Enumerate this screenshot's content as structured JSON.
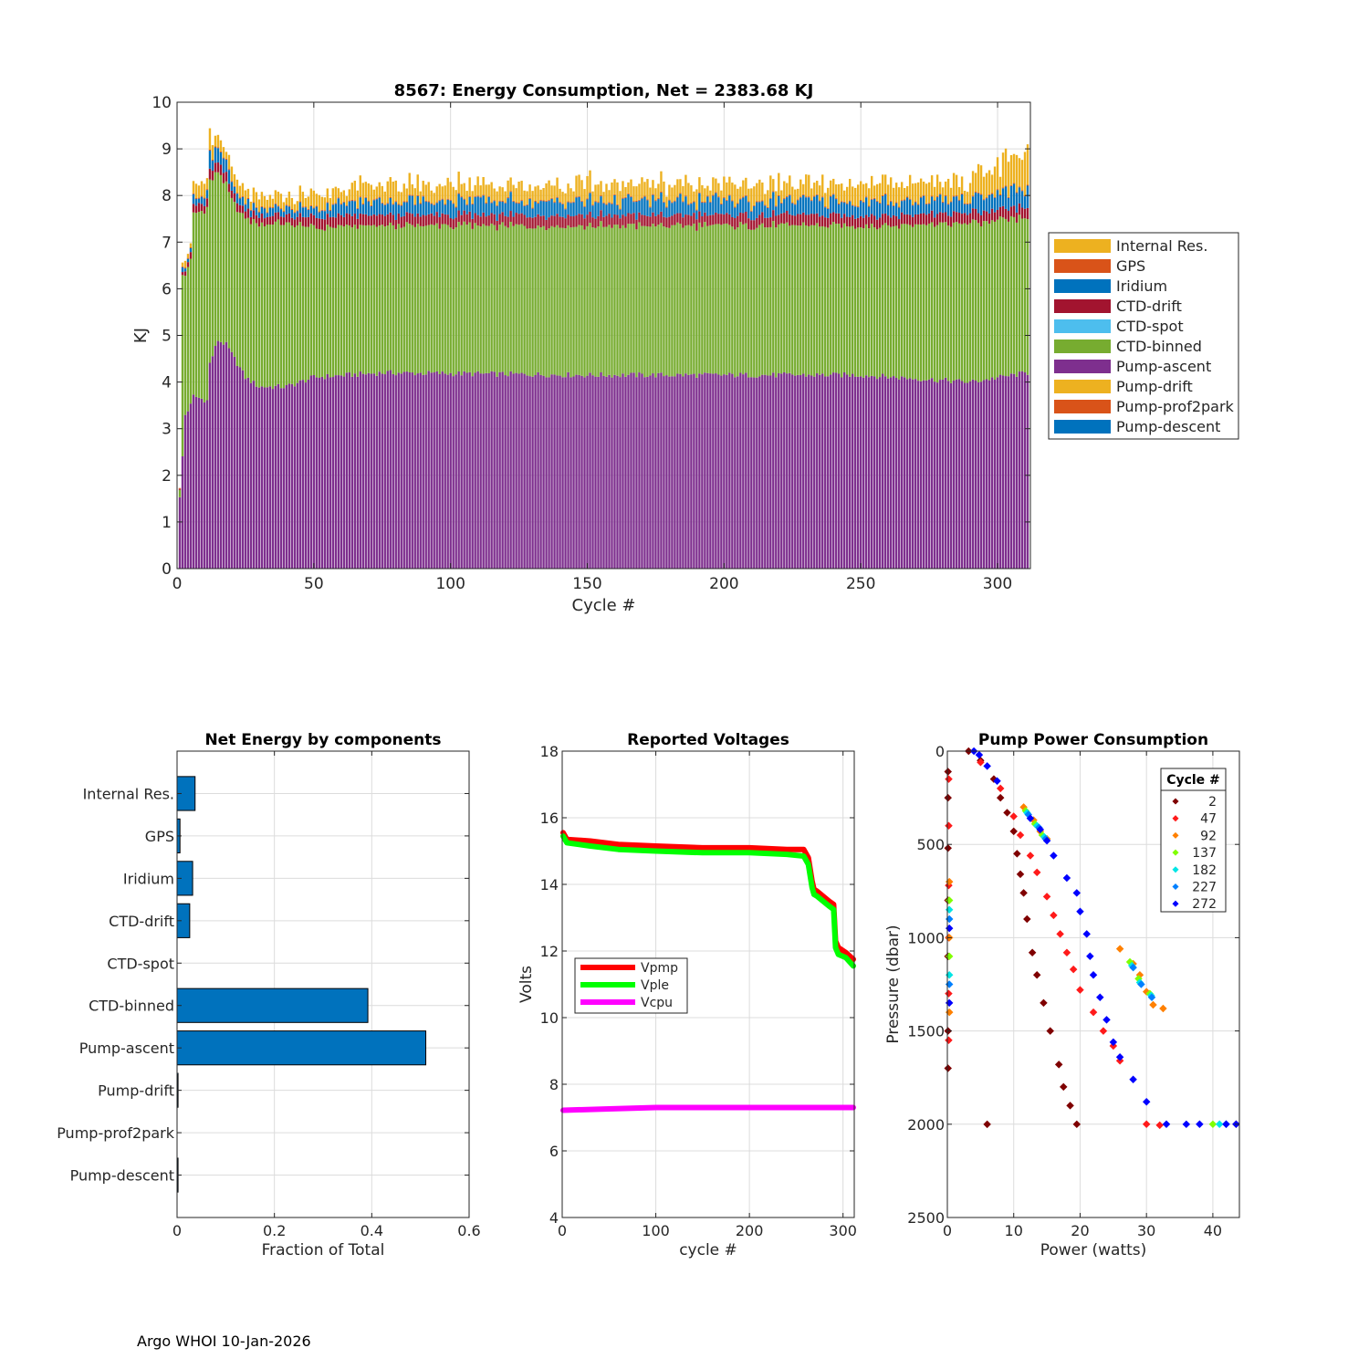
{
  "footer": "Argo WHOI 10-Jan-2026",
  "chart_data": [
    {
      "id": "energy",
      "type": "bar",
      "stacked": true,
      "title": "8567: Energy Consumption,  Net = 2383.68 KJ",
      "xlabel": "Cycle #",
      "ylabel": "KJ",
      "xlim": [
        0,
        312
      ],
      "ylim": [
        0,
        10
      ],
      "xticks": [
        0,
        50,
        100,
        150,
        200,
        250,
        300
      ],
      "yticks": [
        0,
        1,
        2,
        3,
        4,
        5,
        6,
        7,
        8,
        9,
        10
      ],
      "grid": true,
      "legend_position": "east-outside",
      "legend": [
        "Internal Res.",
        "GPS",
        "Iridium",
        "CTD-drift",
        "CTD-spot",
        "CTD-binned",
        "Pump-ascent",
        "Pump-drift",
        "Pump-prof2park",
        "Pump-descent"
      ],
      "colors": {
        "Internal Res.": "#EDB120",
        "GPS": "#D95319",
        "Iridium": "#0072BD",
        "CTD-drift": "#A2142F",
        "CTD-spot": "#4DBEEE",
        "CTD-binned": "#77AC30",
        "Pump-ascent": "#7E2F8E",
        "Pump-drift": "#EDB120",
        "Pump-prof2park": "#D95319",
        "Pump-descent": "#0072BD"
      },
      "n_cycles": 311,
      "profile_keypoints": [
        {
          "cycle": 1,
          "pump_ascent": 1.5,
          "ctd_binned": 0.2,
          "ctd_drift": 0.0,
          "iridium": 0.0,
          "internal": 0.0
        },
        {
          "cycle": 2,
          "pump_ascent": 2.4,
          "ctd_binned": 3.9,
          "ctd_drift": 0.05,
          "iridium": 0.1,
          "internal": 0.1
        },
        {
          "cycle": 3,
          "pump_ascent": 3.3,
          "ctd_binned": 3.0,
          "ctd_drift": 0.05,
          "iridium": 0.1,
          "internal": 0.1
        },
        {
          "cycle": 5,
          "pump_ascent": 3.5,
          "ctd_binned": 3.1,
          "ctd_drift": 0.1,
          "iridium": 0.1,
          "internal": 0.1
        },
        {
          "cycle": 6,
          "pump_ascent": 3.7,
          "ctd_binned": 3.9,
          "ctd_drift": 0.15,
          "iridium": 0.15,
          "internal": 0.2
        },
        {
          "cycle": 11,
          "pump_ascent": 3.6,
          "ctd_binned": 4.1,
          "ctd_drift": 0.15,
          "iridium": 0.15,
          "internal": 0.2
        },
        {
          "cycle": 12,
          "pump_ascent": 4.4,
          "ctd_binned": 3.9,
          "ctd_drift": 0.2,
          "iridium": 0.35,
          "internal": 0.3
        },
        {
          "cycle": 15,
          "pump_ascent": 4.9,
          "ctd_binned": 3.6,
          "ctd_drift": 0.2,
          "iridium": 0.35,
          "internal": 0.2
        },
        {
          "cycle": 18,
          "pump_ascent": 4.8,
          "ctd_binned": 3.4,
          "ctd_drift": 0.2,
          "iridium": 0.3,
          "internal": 0.2
        },
        {
          "cycle": 20,
          "pump_ascent": 4.6,
          "ctd_binned": 3.3,
          "ctd_drift": 0.15,
          "iridium": 0.15,
          "internal": 0.2
        },
        {
          "cycle": 25,
          "pump_ascent": 4.1,
          "ctd_binned": 3.4,
          "ctd_drift": 0.15,
          "iridium": 0.15,
          "internal": 0.2
        },
        {
          "cycle": 30,
          "pump_ascent": 3.9,
          "ctd_binned": 3.5,
          "ctd_drift": 0.15,
          "iridium": 0.15,
          "internal": 0.2
        },
        {
          "cycle": 40,
          "pump_ascent": 3.9,
          "ctd_binned": 3.5,
          "ctd_drift": 0.15,
          "iridium": 0.15,
          "internal": 0.2
        },
        {
          "cycle": 50,
          "pump_ascent": 4.1,
          "ctd_binned": 3.2,
          "ctd_drift": 0.2,
          "iridium": 0.2,
          "internal": 0.25
        },
        {
          "cycle": 75,
          "pump_ascent": 4.2,
          "ctd_binned": 3.15,
          "ctd_drift": 0.2,
          "iridium": 0.3,
          "internal": 0.3
        },
        {
          "cycle": 150,
          "pump_ascent": 4.15,
          "ctd_binned": 3.2,
          "ctd_drift": 0.2,
          "iridium": 0.3,
          "internal": 0.3
        },
        {
          "cycle": 199,
          "pump_ascent": 4.15,
          "ctd_binned": 3.2,
          "ctd_drift": 0.2,
          "iridium": 0.3,
          "internal": 0.3
        },
        {
          "cycle": 250,
          "pump_ascent": 4.15,
          "ctd_binned": 3.2,
          "ctd_drift": 0.2,
          "iridium": 0.3,
          "internal": 0.3
        },
        {
          "cycle": 290,
          "pump_ascent": 4.0,
          "ctd_binned": 3.4,
          "ctd_drift": 0.2,
          "iridium": 0.3,
          "internal": 0.35
        },
        {
          "cycle": 311,
          "pump_ascent": 4.2,
          "ctd_binned": 3.3,
          "ctd_drift": 0.2,
          "iridium": 0.4,
          "internal": 0.6
        }
      ]
    },
    {
      "id": "components",
      "type": "bar",
      "orientation": "horizontal",
      "title": "Net Energy by components",
      "xlabel": "Fraction of Total",
      "xlim": [
        0,
        0.6
      ],
      "xticks": [
        0,
        0.2,
        0.4,
        0.6
      ],
      "xticklabels": [
        "0",
        "0.2",
        "0.4",
        "0.6"
      ],
      "grid": true,
      "color": "#0072BD",
      "categories": [
        "Internal Res.",
        "GPS",
        "Iridium",
        "CTD-drift",
        "CTD-spot",
        "CTD-binned",
        "Pump-ascent",
        "Pump-drift",
        "Pump-prof2park",
        "Pump-descent"
      ],
      "values": [
        0.037,
        0.006,
        0.032,
        0.026,
        0.0,
        0.392,
        0.511,
        0.002,
        0.0,
        0.002
      ]
    },
    {
      "id": "voltages",
      "type": "line",
      "title": "Reported Voltages",
      "xlabel": "cycle #",
      "ylabel": "Volts",
      "xlim": [
        0,
        312
      ],
      "ylim": [
        4,
        18
      ],
      "xticks": [
        0,
        100,
        200,
        300
      ],
      "yticks": [
        4,
        6,
        8,
        10,
        12,
        14,
        16,
        18
      ],
      "grid": true,
      "legend_position": "west",
      "series": [
        {
          "name": "Vpmp",
          "color": "#FF0000",
          "x": [
            1,
            5,
            30,
            60,
            100,
            150,
            200,
            240,
            258,
            263,
            267,
            269,
            272,
            285,
            290,
            292,
            295,
            303,
            311
          ],
          "y": [
            15.55,
            15.35,
            15.3,
            15.2,
            15.15,
            15.1,
            15.1,
            15.05,
            15.05,
            14.8,
            14.1,
            13.85,
            13.8,
            13.5,
            13.4,
            12.3,
            12.1,
            11.95,
            11.75
          ]
        },
        {
          "name": "Vple",
          "color": "#00FF00",
          "x": [
            1,
            5,
            30,
            60,
            100,
            150,
            200,
            240,
            258,
            263,
            267,
            269,
            272,
            285,
            290,
            292,
            295,
            303,
            311
          ],
          "y": [
            15.45,
            15.25,
            15.15,
            15.05,
            15.0,
            14.95,
            14.95,
            14.9,
            14.85,
            14.6,
            13.9,
            13.7,
            13.65,
            13.35,
            13.25,
            12.1,
            11.9,
            11.8,
            11.55
          ]
        },
        {
          "name": "Vcpu",
          "color": "#FF00FF",
          "x": [
            1,
            50,
            100,
            150,
            200,
            250,
            311
          ],
          "y": [
            7.22,
            7.26,
            7.3,
            7.3,
            7.3,
            7.3,
            7.3
          ]
        }
      ]
    },
    {
      "id": "pump",
      "type": "scatter",
      "title": "Pump Power Consumption",
      "xlabel": "Power (watts)",
      "ylabel": "Pressure (dbar)",
      "xlim": [
        0,
        44
      ],
      "ylim": [
        0,
        2500
      ],
      "y_reversed": true,
      "xticks": [
        0,
        10,
        20,
        30,
        40
      ],
      "yticks": [
        0,
        500,
        1000,
        1500,
        2000,
        2500
      ],
      "grid": true,
      "legend_title": "Cycle #",
      "legend_position": "top-right",
      "legend": [
        "2",
        "47",
        "92",
        "137",
        "182",
        "227",
        "272"
      ],
      "colors": [
        "#7F0000",
        "#FF1A1A",
        "#FF8000",
        "#80FF00",
        "#00E5E5",
        "#0080FF",
        "#0000FF"
      ],
      "groups": [
        {
          "label": "2",
          "points": [
            [
              0.1,
              110
            ],
            [
              0.1,
              250
            ],
            [
              0.1,
              520
            ],
            [
              0.1,
              800
            ],
            [
              0.1,
              1100
            ],
            [
              0.1,
              1500
            ],
            [
              0.1,
              1700
            ],
            [
              3.2,
              0
            ],
            [
              5,
              50
            ],
            [
              7,
              150
            ],
            [
              8,
              250
            ],
            [
              9,
              330
            ],
            [
              10,
              430
            ],
            [
              10.5,
              550
            ],
            [
              11,
              660
            ],
            [
              11.5,
              760
            ],
            [
              12,
              900
            ],
            [
              12.8,
              1080
            ],
            [
              13.5,
              1200
            ],
            [
              14.5,
              1350
            ],
            [
              15.5,
              1500
            ],
            [
              16.8,
              1680
            ],
            [
              17.5,
              1800
            ],
            [
              18.5,
              1900
            ],
            [
              19.5,
              2000
            ],
            [
              6,
              2000
            ]
          ]
        },
        {
          "label": "47",
          "points": [
            [
              0.2,
              150
            ],
            [
              0.2,
              400
            ],
            [
              0.2,
              720
            ],
            [
              0.2,
              1000
            ],
            [
              0.2,
              1300
            ],
            [
              0.2,
              1550
            ],
            [
              5,
              60
            ],
            [
              8,
              200
            ],
            [
              10,
              350
            ],
            [
              11,
              450
            ],
            [
              12.5,
              560
            ],
            [
              13.5,
              650
            ],
            [
              15,
              780
            ],
            [
              16,
              880
            ],
            [
              17,
              980
            ],
            [
              18,
              1080
            ],
            [
              19,
              1170
            ],
            [
              20,
              1280
            ],
            [
              22,
              1400
            ],
            [
              23.5,
              1500
            ],
            [
              25,
              1580
            ],
            [
              26,
              1660
            ],
            [
              30,
              2000
            ],
            [
              32,
              2005
            ]
          ]
        },
        {
          "label": "92",
          "points": [
            [
              0.3,
              700
            ],
            [
              0.3,
              1000
            ],
            [
              0.3,
              1400
            ],
            [
              11.5,
              300
            ],
            [
              13,
              370
            ],
            [
              14,
              430
            ],
            [
              15,
              470
            ],
            [
              26,
              1060
            ],
            [
              28,
              1140
            ],
            [
              29,
              1200
            ],
            [
              30,
              1290
            ],
            [
              31,
              1360
            ],
            [
              32.5,
              1380
            ],
            [
              43.5,
              2000
            ]
          ]
        },
        {
          "label": "137",
          "points": [
            [
              0.3,
              800
            ],
            [
              0.3,
              1100
            ],
            [
              11.8,
              320
            ],
            [
              13.2,
              390
            ],
            [
              14.3,
              450
            ],
            [
              27.5,
              1130
            ],
            [
              28.8,
              1220
            ],
            [
              30.5,
              1300
            ],
            [
              40,
              2000
            ]
          ]
        },
        {
          "label": "182",
          "points": [
            [
              0.3,
              850
            ],
            [
              0.3,
              1200
            ],
            [
              12,
              330
            ],
            [
              13.5,
              400
            ],
            [
              14.6,
              460
            ],
            [
              27.8,
              1150
            ],
            [
              29,
              1240
            ],
            [
              30.7,
              1310
            ],
            [
              41,
              2000
            ]
          ]
        },
        {
          "label": "227",
          "points": [
            [
              0.3,
              900
            ],
            [
              0.3,
              1250
            ],
            [
              12.2,
              340
            ],
            [
              13.8,
              410
            ],
            [
              14.8,
              470
            ],
            [
              28,
              1160
            ],
            [
              29.2,
              1250
            ],
            [
              30.8,
              1320
            ],
            [
              42,
              2000
            ]
          ]
        },
        {
          "label": "272",
          "points": [
            [
              0.3,
              950
            ],
            [
              0.3,
              1350
            ],
            [
              4,
              0
            ],
            [
              4.8,
              20
            ],
            [
              6,
              80
            ],
            [
              7.5,
              160
            ],
            [
              12.5,
              360
            ],
            [
              14,
              420
            ],
            [
              15,
              480
            ],
            [
              16,
              560
            ],
            [
              18,
              680
            ],
            [
              19.5,
              760
            ],
            [
              20,
              860
            ],
            [
              21,
              980
            ],
            [
              21.5,
              1100
            ],
            [
              22,
              1200
            ],
            [
              23,
              1320
            ],
            [
              24,
              1440
            ],
            [
              25,
              1560
            ],
            [
              26,
              1640
            ],
            [
              28,
              1760
            ],
            [
              30,
              1880
            ],
            [
              33,
              2000
            ],
            [
              36,
              2000
            ],
            [
              38,
              2000
            ],
            [
              42,
              2000
            ],
            [
              43.5,
              2000
            ]
          ]
        }
      ]
    }
  ]
}
